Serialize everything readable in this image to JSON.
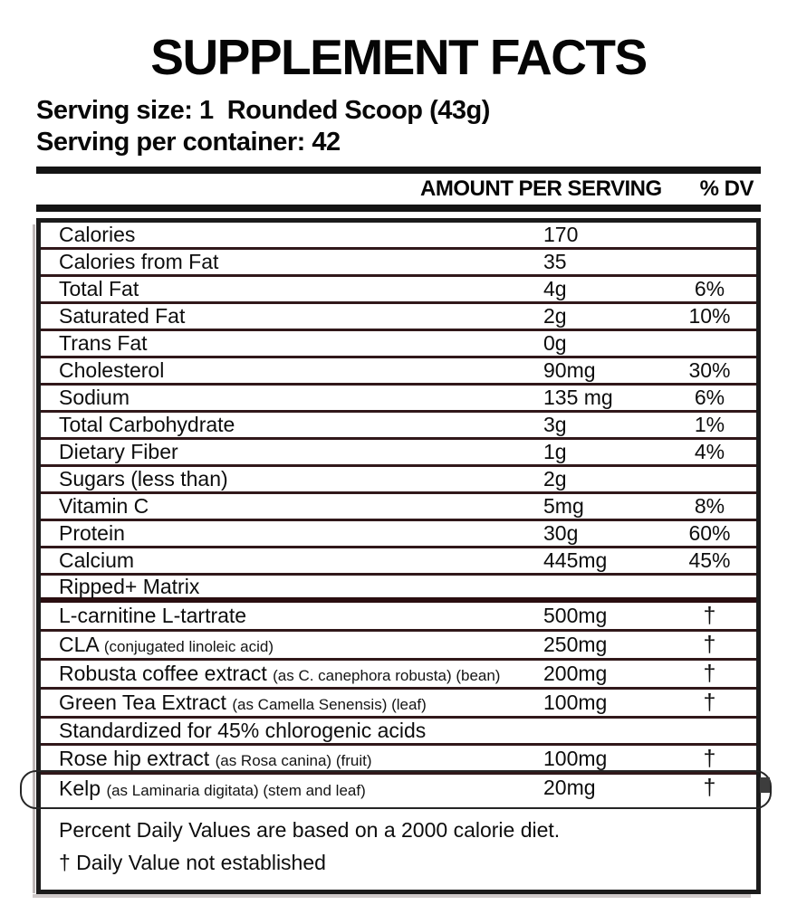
{
  "title": "SUPPLEMENT FACTS",
  "serving": {
    "size_line": "Serving size: 1  Rounded Scoop (43g)",
    "container_line": "Serving per container: 42"
  },
  "columns": {
    "amount_header": "AMOUNT PER SERVING",
    "dv_header": "% DV"
  },
  "rows": [
    {
      "name": "Calories",
      "detail": "",
      "amount": "170",
      "dv": "",
      "type": "normal"
    },
    {
      "name": "Calories from Fat",
      "detail": "",
      "amount": "35",
      "dv": "",
      "type": "normal"
    },
    {
      "name": "Total Fat",
      "detail": "",
      "amount": "4g",
      "dv": "6%",
      "type": "normal"
    },
    {
      "name": "Saturated Fat",
      "detail": "",
      "amount": "2g",
      "dv": "10%",
      "type": "normal"
    },
    {
      "name": "Trans Fat",
      "detail": "",
      "amount": "0g",
      "dv": "",
      "type": "normal"
    },
    {
      "name": "Cholesterol",
      "detail": "",
      "amount": "90mg",
      "dv": "30%",
      "type": "normal"
    },
    {
      "name": "Sodium",
      "detail": "",
      "amount": "135 mg",
      "dv": "6%",
      "type": "normal"
    },
    {
      "name": "Total Carbohydrate",
      "detail": "",
      "amount": "3g",
      "dv": "1%",
      "type": "normal"
    },
    {
      "name": "Dietary Fiber",
      "detail": "",
      "amount": "1g",
      "dv": "4%",
      "type": "normal"
    },
    {
      "name": "Sugars (less than)",
      "detail": "",
      "amount": "2g",
      "dv": "",
      "type": "normal"
    },
    {
      "name": "Vitamin C",
      "detail": "",
      "amount": "5mg",
      "dv": "8%",
      "type": "normal"
    },
    {
      "name": "Protein",
      "detail": "",
      "amount": "30g",
      "dv": "60%",
      "type": "normal"
    },
    {
      "name": "Calcium",
      "detail": "",
      "amount": "445mg",
      "dv": "45%",
      "type": "normal"
    },
    {
      "name": "Ripped+ Matrix",
      "detail": "",
      "amount": "",
      "dv": "",
      "type": "section",
      "thick_after": true
    },
    {
      "name": "L-carnitine L-tartrate",
      "detail": "",
      "amount": "500mg",
      "dv": "†",
      "type": "matrix"
    },
    {
      "name": "CLA",
      "detail": "(conjugated linoleic acid)",
      "amount": "250mg",
      "dv": "†",
      "type": "matrix"
    },
    {
      "name": "Robusta coffee extract",
      "detail": "(as C. canephora robusta) (bean)",
      "amount": "200mg",
      "dv": "†",
      "type": "matrix"
    },
    {
      "name": "Green Tea Extract",
      "detail": "(as Camella Senensis) (leaf)",
      "amount": "100mg",
      "dv": "†",
      "type": "matrix"
    },
    {
      "name": "Standardized for 45% chlorogenic acids",
      "detail": "",
      "amount": "",
      "dv": "",
      "type": "matrix"
    },
    {
      "name": "Rose hip extract",
      "detail": "(as Rosa canina) (fruit)",
      "amount": "100mg",
      "dv": "†",
      "type": "matrix"
    },
    {
      "name": "Kelp",
      "detail": "(as Laminaria digitata) (stem and leaf)",
      "amount": "20mg",
      "dv": "†",
      "type": "matrix",
      "thick_after": true,
      "annotated": true
    }
  ],
  "footer": {
    "line1": "Percent Daily Values are based on a 2000 calorie diet.",
    "line2": "† Daily Value not established"
  },
  "colors": {
    "row_separator": "#31181a",
    "thick_rule": "#2a0e10",
    "outer_border": "#1b1b1b",
    "text": "#111111",
    "background": "#ffffff"
  }
}
